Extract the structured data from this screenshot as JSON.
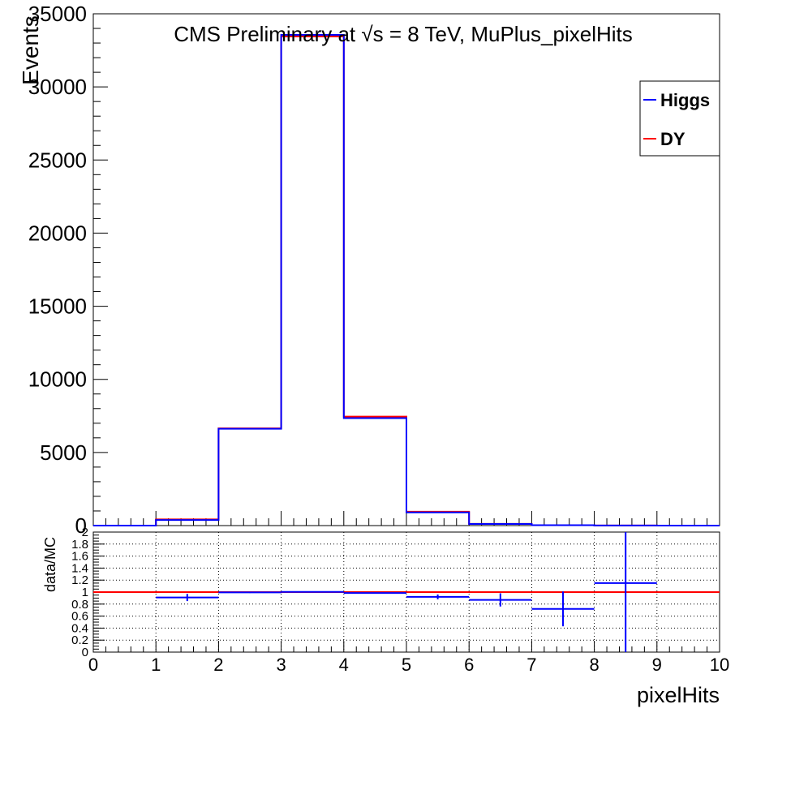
{
  "chart_data": [
    {
      "type": "histogram",
      "panel": "main",
      "title": "CMS Preliminary at √s = 8 TeV, MuPlus_pixelHits",
      "ylabel": "Events",
      "xlim": [
        0,
        10
      ],
      "ylim": [
        0,
        35000
      ],
      "yticks": [
        0,
        5000,
        10000,
        15000,
        20000,
        25000,
        30000,
        35000
      ],
      "bin_edges": [
        0,
        1,
        2,
        3,
        4,
        5,
        6,
        7,
        8,
        9,
        10
      ],
      "series": [
        {
          "name": "DY",
          "color": "#ff0000",
          "values": [
            0,
            420,
            6650,
            33450,
            7450,
            950,
            120,
            30,
            5,
            2
          ]
        },
        {
          "name": "Higgs",
          "color": "#0000ff",
          "values": [
            0,
            380,
            6620,
            33560,
            7350,
            900,
            110,
            25,
            6,
            2
          ]
        }
      ],
      "legend": {
        "position": "top-right",
        "entries": [
          "Higgs",
          "DY"
        ]
      }
    },
    {
      "type": "scatter",
      "panel": "ratio",
      "ylabel": "data/MC",
      "xlabel": "pixelHits",
      "xlim": [
        0,
        10
      ],
      "ylim": [
        0,
        2
      ],
      "yticks": [
        "0",
        "0.2",
        "0.4",
        "0.6",
        "0.8",
        "1",
        "1.2",
        "1.4",
        "1.6",
        "1.8",
        "2"
      ],
      "xticks": [
        "0",
        "1",
        "2",
        "3",
        "4",
        "5",
        "6",
        "7",
        "8",
        "9",
        "10"
      ],
      "grid": true,
      "reference_line": {
        "y": 1,
        "color": "#ff0000"
      },
      "points": [
        {
          "x": 1.5,
          "y": 0.91,
          "xerr": 0.5,
          "yerr": 0.06
        },
        {
          "x": 2.5,
          "y": 0.995,
          "xerr": 0.5,
          "yerr": 0.01
        },
        {
          "x": 3.5,
          "y": 1.003,
          "xerr": 0.5,
          "yerr": 0.005
        },
        {
          "x": 4.5,
          "y": 0.985,
          "xerr": 0.5,
          "yerr": 0.01
        },
        {
          "x": 5.5,
          "y": 0.92,
          "xerr": 0.5,
          "yerr": 0.04
        },
        {
          "x": 6.5,
          "y": 0.87,
          "xerr": 0.5,
          "yerr": 0.11
        },
        {
          "x": 7.5,
          "y": 0.72,
          "xerr": 0.5,
          "yerr": 0.29
        },
        {
          "x": 8.5,
          "y": 1.15,
          "xerr": 0.5,
          "yerr": 1.15
        }
      ],
      "point_color": "#0000ff"
    }
  ]
}
